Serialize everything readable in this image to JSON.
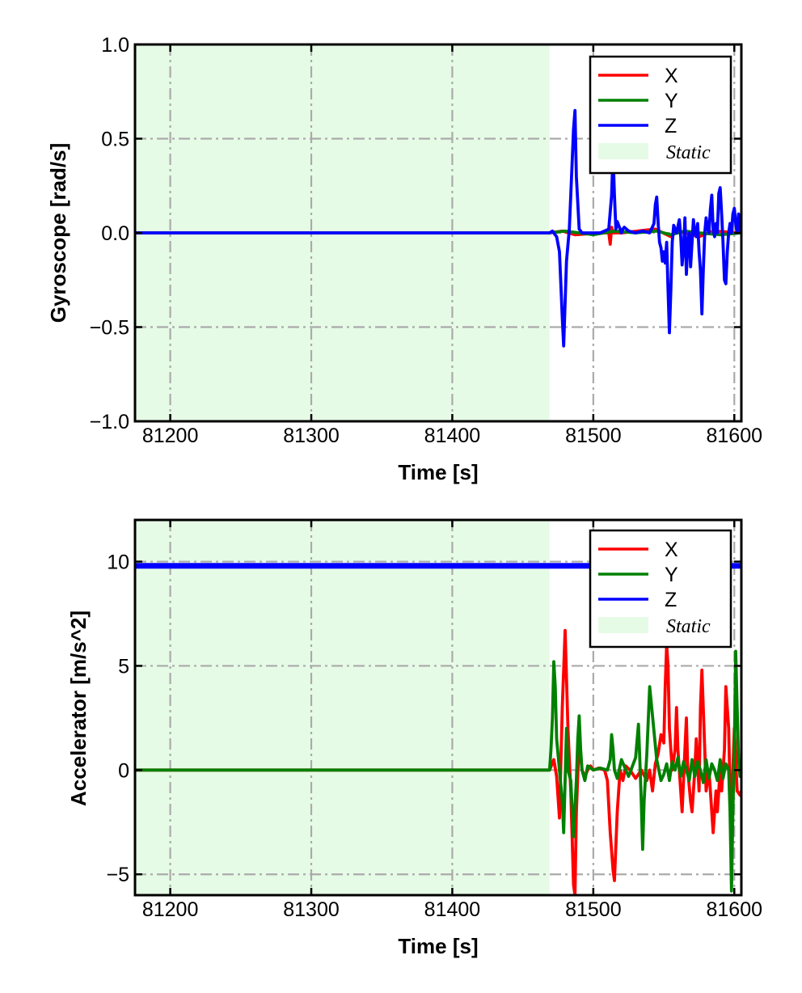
{
  "chart_data": [
    {
      "type": "line",
      "ylabel": "Gyroscope [rad/s]",
      "xlabel": "Time [s]",
      "xlim": [
        81175,
        81605
      ],
      "ylim": [
        -1.0,
        1.0
      ],
      "xticks": [
        81200,
        81300,
        81400,
        81500,
        81600
      ],
      "xtick_labels": [
        "81200",
        "81300",
        "81400",
        "81500",
        "81600"
      ],
      "yticks": [
        -1.0,
        -0.5,
        0.0,
        0.5,
        1.0
      ],
      "ytick_labels": [
        "−1.0",
        "−0.5",
        "0.0",
        "0.5",
        "1.0"
      ],
      "grid": true,
      "legend_position": "top-right",
      "static_region": {
        "label": "Static",
        "x": [
          81175,
          81469
        ],
        "color": "#e6fbe6"
      },
      "series": [
        {
          "name": "X",
          "color": "#ff0000",
          "x": [
            81175,
            81469,
            81478,
            81487,
            81505,
            81511,
            81512,
            81513,
            81514,
            81520,
            81544,
            81555,
            81560,
            81575,
            81585,
            81605
          ],
          "y": [
            0,
            0,
            0.01,
            -0.01,
            0,
            0,
            -0.06,
            0.03,
            0,
            0,
            0.02,
            -0.02,
            0.01,
            -0.02,
            0.01,
            0
          ]
        },
        {
          "name": "Y",
          "color": "#008000",
          "x": [
            81175,
            81469,
            81480,
            81490,
            81500,
            81515,
            81530,
            81545,
            81555,
            81565,
            81575,
            81590,
            81605
          ],
          "y": [
            0,
            0,
            0.01,
            0,
            -0.01,
            0.01,
            0,
            0.01,
            -0.01,
            0.01,
            0,
            -0.01,
            0
          ]
        },
        {
          "name": "Z",
          "color": "#0000ff",
          "x": [
            81175,
            81469,
            81471,
            81474,
            81476,
            81478,
            81479,
            81481,
            81483,
            81484,
            81486,
            81487,
            81488,
            81490,
            81492,
            81505,
            81511,
            81513,
            81514,
            81515,
            81516,
            81517,
            81519,
            81520,
            81521,
            81522,
            81525,
            81530,
            81535,
            81540,
            81543,
            81544,
            81545,
            81546,
            81547,
            81548,
            81549,
            81550,
            81551,
            81552,
            81553,
            81554,
            81555,
            81556,
            81557,
            81559,
            81561,
            81562,
            81563,
            81564,
            81565,
            81566,
            81567,
            81568,
            81569,
            81570,
            81571,
            81572,
            81573,
            81574,
            81575,
            81576,
            81577,
            81578,
            81579,
            81580,
            81581,
            81582,
            81583,
            81584,
            81585,
            81586,
            81587,
            81588,
            81589,
            81590,
            81591,
            81592,
            81593,
            81594,
            81595,
            81596,
            81597,
            81598,
            81599,
            81600,
            81601,
            81602,
            81603,
            81604,
            81605
          ],
          "y": [
            0,
            0,
            0.01,
            -0.02,
            -0.1,
            -0.45,
            -0.6,
            -0.15,
            0.02,
            0.2,
            0.55,
            0.65,
            0.3,
            0.02,
            0,
            0,
            0.02,
            0.2,
            0.42,
            0.2,
            0.02,
            0.06,
            0.02,
            0.0,
            0.02,
            0.03,
            0.01,
            0,
            0.01,
            0,
            0.05,
            0.15,
            0.19,
            0.05,
            -0.05,
            -0.08,
            -0.15,
            -0.1,
            -0.16,
            -0.05,
            -0.3,
            -0.53,
            -0.3,
            -0.05,
            0.04,
            0.0,
            0.07,
            -0.02,
            -0.17,
            -0.08,
            0.08,
            -0.22,
            -0.05,
            0.0,
            -0.18,
            -0.05,
            0.07,
            0.0,
            -0.02,
            0.05,
            -0.1,
            -0.2,
            -0.43,
            -0.2,
            0.0,
            0.08,
            0.02,
            0.0,
            0.12,
            0.2,
            0.02,
            -0.02,
            0.05,
            0.0,
            0.21,
            0.24,
            0.1,
            -0.05,
            -0.25,
            -0.27,
            -0.1,
            0.0,
            0.05,
            0.0,
            0.1,
            0.13,
            0.05,
            0.0,
            0.1,
            0.02,
            0
          ]
        }
      ]
    },
    {
      "type": "line",
      "ylabel": "Accelerator [m/s^2]",
      "xlabel": "Time [s]",
      "xlim": [
        81175,
        81605
      ],
      "ylim": [
        -6,
        12
      ],
      "xticks": [
        81200,
        81300,
        81400,
        81500,
        81600
      ],
      "xtick_labels": [
        "81200",
        "81300",
        "81400",
        "81500",
        "81600"
      ],
      "yticks": [
        -5,
        0,
        5,
        10
      ],
      "ytick_labels": [
        "−5",
        "0",
        "5",
        "10"
      ],
      "grid": true,
      "legend_position": "top-right",
      "static_region": {
        "label": "Static",
        "x": [
          81175,
          81469
        ],
        "color": "#e6fbe6"
      },
      "series": [
        {
          "name": "X",
          "color": "#ff0000",
          "x": [
            81175,
            81469,
            81472,
            81474,
            81476,
            81478,
            81480,
            81482,
            81484,
            81486,
            81487,
            81488,
            81490,
            81492,
            81494,
            81496,
            81498,
            81500,
            81504,
            81508,
            81510,
            81512,
            81514,
            81515,
            81517,
            81519,
            81521,
            81523,
            81526,
            81530,
            81534,
            81538,
            81540,
            81542,
            81544,
            81546,
            81548,
            81550,
            81551,
            81552,
            81553,
            81554,
            81556,
            81558,
            81559,
            81560,
            81562,
            81563,
            81565,
            81566,
            81567,
            81569,
            81570,
            81572,
            81573,
            81575,
            81576,
            81577,
            81579,
            81580,
            81582,
            81584,
            81585,
            81587,
            81588,
            81590,
            81591,
            81593,
            81594,
            81596,
            81597,
            81598,
            81599,
            81600,
            81601,
            81602,
            81604,
            81605
          ],
          "y": [
            0,
            0,
            0.5,
            -0.3,
            -2.3,
            3.0,
            6.7,
            2.0,
            -1.0,
            -5.5,
            -6.0,
            -2.0,
            1.5,
            0.0,
            -0.3,
            0.0,
            0.2,
            0.0,
            0.1,
            0.0,
            -0.5,
            -3.0,
            -4.8,
            -5.3,
            -2.0,
            0.0,
            -0.5,
            0.2,
            0.0,
            -0.4,
            0.0,
            -0.5,
            0.0,
            -1.0,
            0.3,
            0.8,
            1.7,
            1.3,
            4.0,
            6.0,
            5.0,
            2.0,
            0.0,
            1.0,
            3.0,
            1.0,
            -1.0,
            -2.0,
            1.0,
            2.5,
            0.0,
            -1.5,
            -2.0,
            0.0,
            1.5,
            -1.0,
            3.0,
            4.8,
            1.0,
            -1.0,
            0.0,
            -2.0,
            -3.0,
            -1.0,
            -2.0,
            0.0,
            -1.0,
            1.0,
            4.0,
            2.0,
            -1.0,
            -2.0,
            0.0,
            2.0,
            0.5,
            -1.0,
            -1.2,
            -1.0
          ]
        },
        {
          "name": "Y",
          "color": "#008000",
          "x": [
            81175,
            81469,
            81470,
            81471,
            81472,
            81473,
            81474,
            81476,
            81478,
            81479,
            81480,
            81481,
            81482,
            81484,
            81486,
            81488,
            81489,
            81490,
            81491,
            81492,
            81494,
            81496,
            81500,
            81505,
            81510,
            81512,
            81513,
            81514,
            81515,
            81517,
            81520,
            81525,
            81530,
            81532,
            81533,
            81534,
            81535,
            81536,
            81538,
            81540,
            81545,
            81548,
            81550,
            81552,
            81554,
            81555,
            81556,
            81558,
            81560,
            81562,
            81564,
            81566,
            81568,
            81570,
            81572,
            81574,
            81576,
            81578,
            81580,
            81582,
            81584,
            81586,
            81588,
            81590,
            81592,
            81594,
            81596,
            81597,
            81598,
            81599,
            81600,
            81601,
            81602,
            81603,
            81604,
            81605
          ],
          "y": [
            0,
            0,
            1.0,
            2.5,
            5.2,
            4.0,
            1.5,
            0.0,
            -1.5,
            -3.0,
            -0.5,
            2.0,
            0.0,
            -0.5,
            -3.2,
            -0.5,
            1.5,
            2.6,
            1.0,
            0.0,
            -0.5,
            0.2,
            0.0,
            0.1,
            0.0,
            0.5,
            1.7,
            1.0,
            0.0,
            -0.4,
            0.5,
            -0.3,
            0.6,
            2.2,
            0.5,
            -1.5,
            -3.8,
            -1.5,
            0.8,
            4.0,
            0.5,
            -0.5,
            -0.2,
            0.3,
            -0.5,
            0.0,
            0.4,
            0.0,
            0.6,
            -0.3,
            0.4,
            0.0,
            -0.5,
            0.5,
            -0.3,
            0.4,
            0.0,
            -0.6,
            0.5,
            -0.4,
            0.3,
            0.0,
            -0.5,
            0.5,
            -0.4,
            0.3,
            0.0,
            -2.0,
            -5.8,
            -2.0,
            1.0,
            5.7,
            3.0,
            0.5,
            -0.3,
            0.0
          ]
        },
        {
          "name": "Z",
          "color": "#0000ff",
          "x": [
            81175,
            81605
          ],
          "y": [
            9.8,
            9.8
          ]
        }
      ]
    }
  ]
}
